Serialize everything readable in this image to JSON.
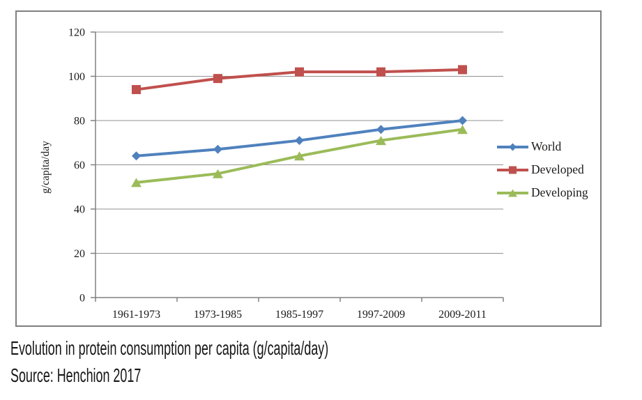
{
  "chart_data": {
    "type": "line",
    "categories": [
      "1961-1973",
      "1973-1985",
      "1985-1997",
      "1997-2009",
      "2009-2011"
    ],
    "series": [
      {
        "name": "World",
        "color": "#4F81BD",
        "marker": "diamond",
        "values": [
          64,
          67,
          71,
          76,
          80
        ]
      },
      {
        "name": "Developed",
        "color": "#C0504D",
        "marker": "square",
        "values": [
          94,
          99,
          102,
          102,
          103
        ]
      },
      {
        "name": "Developing",
        "color": "#9BBB59",
        "marker": "triangle",
        "values": [
          52,
          56,
          64,
          71,
          76
        ]
      }
    ],
    "xlabel": "",
    "ylabel": "g/capita/day",
    "ylim": [
      0,
      120
    ],
    "yticks": [
      0,
      20,
      40,
      60,
      80,
      100,
      120
    ],
    "grid": true,
    "legend_position": "right"
  },
  "caption": {
    "line1": "Evolution in protein consumption per capita (g/capita/day)",
    "line2": "Source: Henchion 2017"
  },
  "styles": {
    "grid_color": "#909090",
    "axis_color": "#808080",
    "border_color": "#7f7f7f",
    "text_color": "#1a1a1a"
  }
}
